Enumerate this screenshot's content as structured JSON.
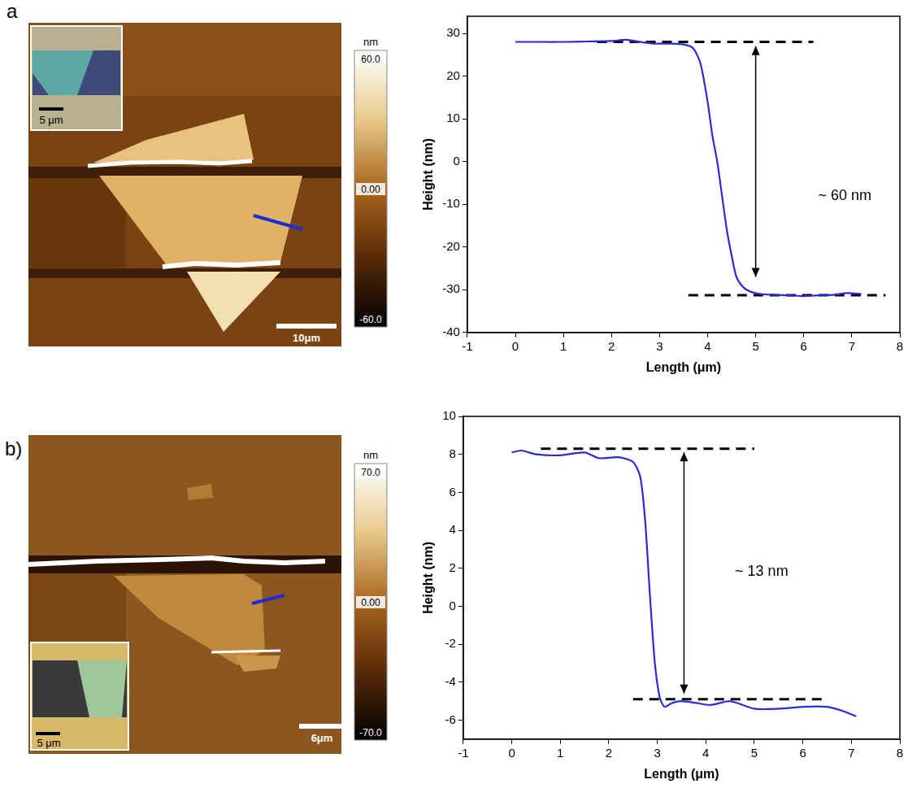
{
  "chart_data": [
    {
      "type": "line",
      "panel_label": "a",
      "x_label": "Length (μm)",
      "y_label": "Height (nm)",
      "x": [
        0,
        0.5,
        1,
        1.5,
        2,
        2.3,
        2.6,
        2.9,
        3.2,
        3.5,
        3.7,
        3.85,
        4.0,
        4.1,
        4.2,
        4.3,
        4.4,
        4.5,
        4.6,
        4.75,
        4.9,
        5.1,
        5.4,
        5.7,
        6.0,
        6.3,
        6.6,
        6.9,
        7.2
      ],
      "values": [
        28,
        28,
        28,
        28.1,
        28.2,
        28.5,
        28,
        27.6,
        27.6,
        27.4,
        26.5,
        23,
        14,
        6,
        0,
        -8,
        -16,
        -22,
        -27,
        -29.5,
        -30.5,
        -31,
        -31.2,
        -31.3,
        -31.5,
        -31.3,
        -31.2,
        -30.8,
        -31
      ],
      "color": "#2b2bd6",
      "line_style": "solid",
      "grid": false,
      "xlim": [
        -1,
        8
      ],
      "xticks": [
        -1,
        0,
        1,
        2,
        3,
        4,
        5,
        6,
        7,
        8
      ],
      "ylim": [
        -40,
        34
      ],
      "yticks": [
        -40,
        -30,
        -20,
        -10,
        0,
        10,
        20,
        30
      ],
      "reference_lines": [
        {
          "y": 28,
          "x": [
            1.7,
            6.2
          ],
          "line_style": "dashed"
        },
        {
          "y": -31.3,
          "x": [
            3.6,
            7.7
          ],
          "line_style": "dashed"
        }
      ],
      "arrow": {
        "x": 5.0,
        "y": [
          27,
          -27
        ]
      },
      "annotation": {
        "text": "~ 60 nm",
        "x": 6.3,
        "y": -8
      }
    },
    {
      "type": "line",
      "panel_label": "b)",
      "x_label": "Length (μm)",
      "y_label": "Height (nm)",
      "x": [
        0,
        0.2,
        0.5,
        1,
        1.5,
        1.8,
        2.2,
        2.5,
        2.65,
        2.75,
        2.85,
        2.95,
        3.05,
        3.15,
        3.3,
        3.5,
        3.8,
        4.1,
        4.5,
        5.0,
        5.5,
        6.0,
        6.5,
        6.8,
        7.1
      ],
      "values": [
        8.1,
        8.2,
        8.0,
        7.95,
        8.1,
        7.8,
        7.85,
        7.6,
        6.8,
        4.5,
        0.5,
        -3,
        -4.8,
        -5.3,
        -5.1,
        -5.0,
        -5.1,
        -5.2,
        -5.0,
        -5.4,
        -5.4,
        -5.3,
        -5.3,
        -5.5,
        -5.8
      ],
      "color": "#2b2bd6",
      "line_style": "solid",
      "grid": false,
      "xlim": [
        -1,
        8
      ],
      "xticks": [
        -1,
        0,
        1,
        2,
        3,
        4,
        5,
        6,
        7,
        8
      ],
      "ylim": [
        -7,
        10
      ],
      "yticks": [
        -6,
        -4,
        -2,
        0,
        2,
        4,
        6,
        8,
        10
      ],
      "reference_lines": [
        {
          "y": 8.3,
          "x": [
            0.6,
            5.0
          ],
          "line_style": "dashed"
        },
        {
          "y": -4.9,
          "x": [
            2.5,
            6.5
          ],
          "line_style": "dashed"
        }
      ],
      "arrow": {
        "x": 3.55,
        "y": [
          8.1,
          -4.6
        ]
      },
      "annotation": {
        "text": "~ 13 nm",
        "x": 4.6,
        "y": 1.8
      }
    }
  ],
  "images": [
    {
      "colorbar": {
        "unit": "nm",
        "range": [
          -60,
          60
        ],
        "ticks": [
          {
            "value": 60,
            "label": "60.0"
          },
          {
            "value": 0,
            "label": "0.00"
          },
          {
            "value": -60,
            "label": "-60.0"
          }
        ]
      },
      "scale_bar": "10μm",
      "inset_scale_bar": "5 μm"
    },
    {
      "colorbar": {
        "unit": "nm",
        "range": [
          -70,
          70
        ],
        "ticks": [
          {
            "value": 70,
            "label": "70.0"
          },
          {
            "value": 0,
            "label": "0.00"
          },
          {
            "value": -70,
            "label": "-70.0"
          }
        ]
      },
      "scale_bar": "6μm",
      "inset_scale_bar": "5 μm"
    }
  ]
}
